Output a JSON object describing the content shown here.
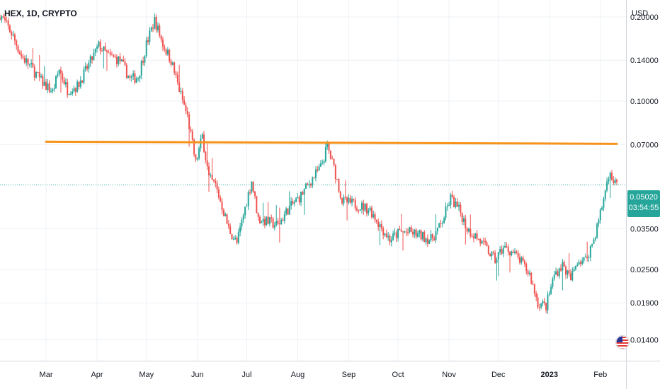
{
  "header": {
    "symbol": "HEX, 1D, CRYPTO"
  },
  "axis": {
    "currency": "USD"
  },
  "last_price": {
    "value": "0.05020",
    "countdown": "03:54:55"
  },
  "colors": {
    "up": "#26a69a",
    "down": "#ef5350",
    "level_line": "#f7931a",
    "grid": "#eef1f6",
    "price_line": "#26a69a",
    "axis_border": "#d1d4dc"
  },
  "icons": [
    "us-flag-icon"
  ],
  "chart_data": {
    "type": "candlestick",
    "y_scale": "log",
    "ylim": [
      0.0118,
      0.23
    ],
    "y_ticks": [
      "0.20000",
      "0.14000",
      "0.10000",
      "0.07000",
      "0.05020",
      "0.03500",
      "0.02500",
      "0.01900",
      "0.01400"
    ],
    "y_tick_values": [
      0.2,
      0.14,
      0.1,
      0.07,
      0.0502,
      0.035,
      0.025,
      0.019,
      0.014
    ],
    "x_labels": [
      "Mar",
      "Apr",
      "May",
      "Jun",
      "Jul",
      "Aug",
      "Sep",
      "Oct",
      "Nov",
      "Dec",
      "2023",
      "Feb"
    ],
    "x_label_dates": [
      "2022-03-01",
      "2022-04-01",
      "2022-05-01",
      "2022-06-01",
      "2022-07-01",
      "2022-08-01",
      "2022-09-01",
      "2022-10-01",
      "2022-11-01",
      "2022-12-01",
      "2023-01-01",
      "2023-02-01"
    ],
    "date_range": [
      "2022-02-01",
      "2023-02-11"
    ],
    "horizontal_level": {
      "value": 0.071,
      "from": "2022-03-01",
      "to": "2023-02-11"
    },
    "close_path": [
      [
        "2022-02-01",
        0.205
      ],
      [
        "2022-02-08",
        0.175
      ],
      [
        "2022-02-14",
        0.145
      ],
      [
        "2022-02-20",
        0.132
      ],
      [
        "2022-02-26",
        0.118
      ],
      [
        "2022-03-05",
        0.108
      ],
      [
        "2022-03-09",
        0.13
      ],
      [
        "2022-03-14",
        0.11
      ],
      [
        "2022-03-20",
        0.113
      ],
      [
        "2022-03-27",
        0.135
      ],
      [
        "2022-04-02",
        0.158
      ],
      [
        "2022-04-08",
        0.145
      ],
      [
        "2022-04-15",
        0.14
      ],
      [
        "2022-04-21",
        0.12
      ],
      [
        "2022-04-26",
        0.122
      ],
      [
        "2022-05-01",
        0.16
      ],
      [
        "2022-05-06",
        0.195
      ],
      [
        "2022-05-11",
        0.16
      ],
      [
        "2022-05-16",
        0.14
      ],
      [
        "2022-05-21",
        0.11
      ],
      [
        "2022-05-26",
        0.088
      ],
      [
        "2022-05-31",
        0.06
      ],
      [
        "2022-06-04",
        0.075
      ],
      [
        "2022-06-08",
        0.053
      ],
      [
        "2022-06-12",
        0.05
      ],
      [
        "2022-06-16",
        0.042
      ],
      [
        "2022-06-20",
        0.035
      ],
      [
        "2022-06-25",
        0.031
      ],
      [
        "2022-07-01",
        0.044
      ],
      [
        "2022-07-04",
        0.052
      ],
      [
        "2022-07-08",
        0.038
      ],
      [
        "2022-07-14",
        0.037
      ],
      [
        "2022-07-20",
        0.036
      ],
      [
        "2022-07-26",
        0.041
      ],
      [
        "2022-08-03",
        0.046
      ],
      [
        "2022-08-09",
        0.052
      ],
      [
        "2022-08-15",
        0.058
      ],
      [
        "2022-08-19",
        0.069
      ],
      [
        "2022-08-24",
        0.055
      ],
      [
        "2022-08-28",
        0.044
      ],
      [
        "2022-09-03",
        0.043
      ],
      [
        "2022-09-09",
        0.042
      ],
      [
        "2022-09-14",
        0.041
      ],
      [
        "2022-09-20",
        0.036
      ],
      [
        "2022-09-26",
        0.032
      ],
      [
        "2022-10-02",
        0.034
      ],
      [
        "2022-10-08",
        0.034
      ],
      [
        "2022-10-15",
        0.033
      ],
      [
        "2022-10-21",
        0.032
      ],
      [
        "2022-10-27",
        0.036
      ],
      [
        "2022-11-02",
        0.045
      ],
      [
        "2022-11-08",
        0.04
      ],
      [
        "2022-11-12",
        0.035
      ],
      [
        "2022-11-17",
        0.033
      ],
      [
        "2022-11-23",
        0.03
      ],
      [
        "2022-11-29",
        0.027
      ],
      [
        "2022-12-04",
        0.03
      ],
      [
        "2022-12-09",
        0.029
      ],
      [
        "2022-12-14",
        0.027
      ],
      [
        "2022-12-20",
        0.024
      ],
      [
        "2022-12-25",
        0.019
      ],
      [
        "2022-12-30",
        0.0185
      ],
      [
        "2023-01-04",
        0.024
      ],
      [
        "2023-01-09",
        0.026
      ],
      [
        "2023-01-14",
        0.023
      ],
      [
        "2023-01-18",
        0.027
      ],
      [
        "2023-01-23",
        0.027
      ],
      [
        "2023-01-28",
        0.032
      ],
      [
        "2023-02-02",
        0.042
      ],
      [
        "2023-02-06",
        0.055
      ],
      [
        "2023-02-11",
        0.0502
      ]
    ]
  }
}
